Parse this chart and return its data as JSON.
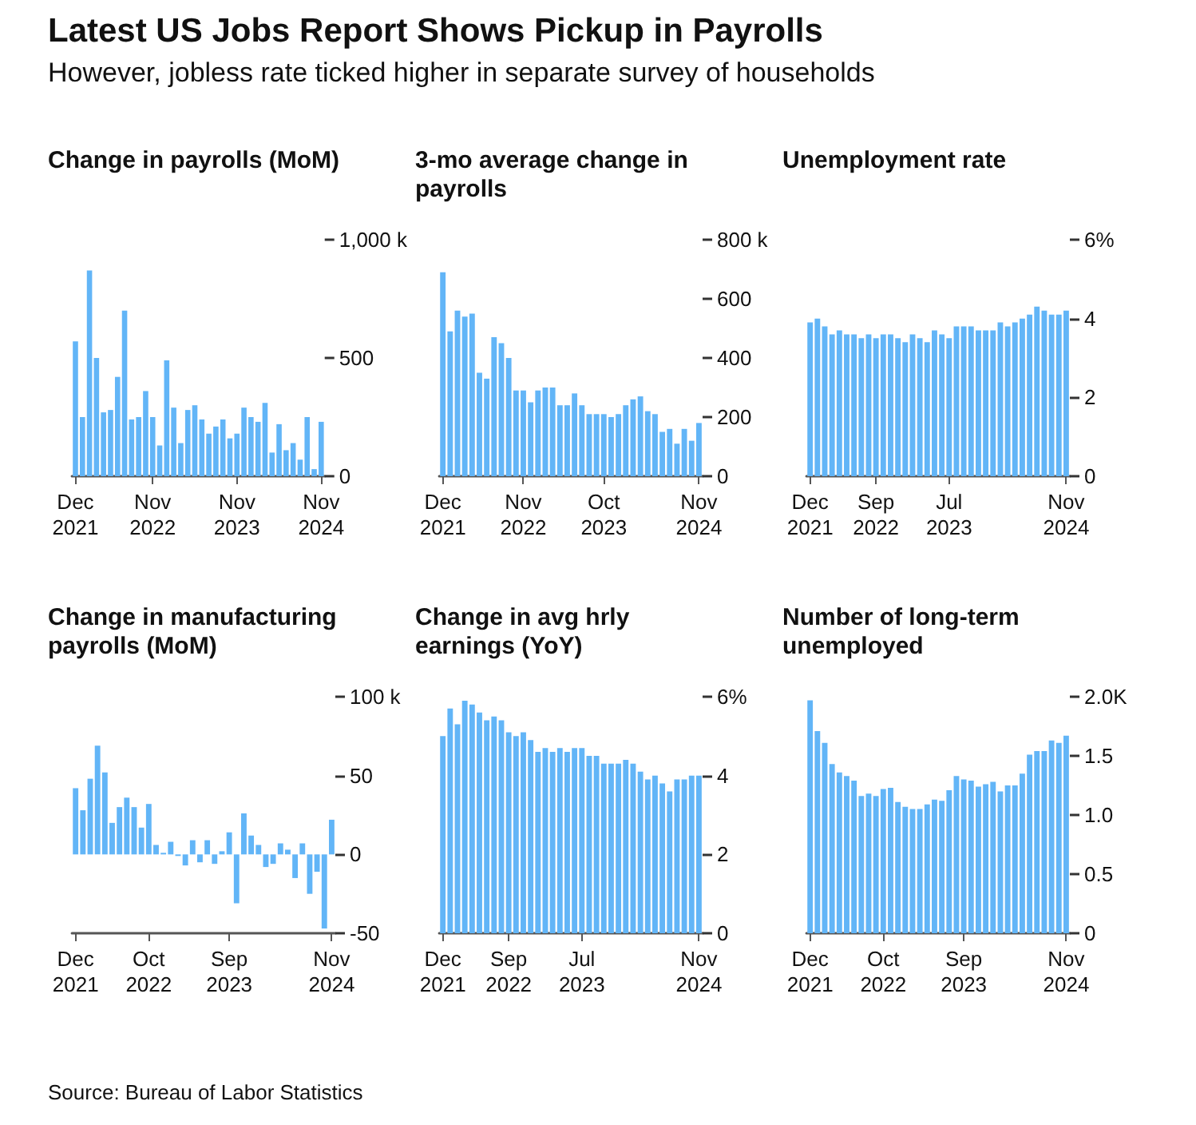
{
  "chart_data": [
    {
      "type": "other",
      "title": "Latest US Jobs Report Shows Pickup in Payrolls",
      "subtitle": "However, jobless rate ticked higher in separate survey of households",
      "annotations": [
        "Source: Bureau of Labor Statistics"
      ]
    },
    {
      "type": "bar",
      "title": "Change in payrolls (MoM)",
      "grid": false,
      "categories": [
        "Dec 2021",
        null,
        null,
        null,
        null,
        null,
        null,
        null,
        null,
        null,
        null,
        "Nov 2022",
        null,
        null,
        null,
        null,
        null,
        null,
        null,
        null,
        null,
        null,
        null,
        "Nov 2023",
        null,
        null,
        null,
        null,
        null,
        null,
        null,
        null,
        null,
        null,
        null,
        "Nov 2024"
      ],
      "series": [
        {
          "color": "#62b5f7",
          "values": [
            570,
            250,
            870,
            500,
            270,
            280,
            420,
            700,
            240,
            250,
            360,
            250,
            130,
            490,
            290,
            140,
            280,
            300,
            240,
            180,
            210,
            240,
            160,
            180,
            290,
            250,
            230,
            310,
            100,
            220,
            110,
            140,
            70,
            250,
            30,
            230
          ]
        }
      ],
      "ylim": [
        0,
        1000
      ],
      "yticks": [
        0,
        500,
        {
          "value": 1000,
          "label": "1,000 k"
        }
      ]
    },
    {
      "type": "bar",
      "title": "3-mo average change in payrolls",
      "grid": false,
      "categories": [
        "Dec 2021",
        null,
        null,
        null,
        null,
        null,
        null,
        null,
        null,
        null,
        null,
        "Nov 2022",
        null,
        null,
        null,
        null,
        null,
        null,
        null,
        null,
        null,
        null,
        "Oct 2023",
        null,
        null,
        null,
        null,
        null,
        null,
        null,
        null,
        null,
        null,
        null,
        null,
        "Nov 2024"
      ],
      "series": [
        {
          "color": "#62b5f7",
          "values": [
            690,
            490,
            560,
            540,
            550,
            350,
            330,
            470,
            450,
            400,
            290,
            290,
            250,
            290,
            300,
            300,
            240,
            240,
            280,
            240,
            210,
            210,
            210,
            200,
            210,
            240,
            260,
            270,
            220,
            210,
            150,
            160,
            110,
            160,
            120,
            180
          ]
        }
      ],
      "ylim": [
        0,
        800
      ],
      "yticks": [
        0,
        200,
        400,
        600,
        {
          "value": 800,
          "label": "800 k"
        }
      ]
    },
    {
      "type": "bar",
      "title": "Unemployment rate",
      "grid": false,
      "categories": [
        "Dec 2021",
        null,
        null,
        null,
        null,
        null,
        null,
        null,
        null,
        "Sep 2022",
        null,
        null,
        null,
        null,
        null,
        null,
        null,
        null,
        null,
        "Jul 2023",
        null,
        null,
        null,
        null,
        null,
        null,
        null,
        null,
        null,
        null,
        null,
        null,
        null,
        null,
        null,
        "Nov 2024"
      ],
      "series": [
        {
          "color": "#62b5f7",
          "values": [
            3.9,
            4.0,
            3.8,
            3.6,
            3.7,
            3.6,
            3.6,
            3.5,
            3.6,
            3.5,
            3.6,
            3.6,
            3.5,
            3.4,
            3.6,
            3.5,
            3.4,
            3.7,
            3.6,
            3.5,
            3.8,
            3.8,
            3.8,
            3.7,
            3.7,
            3.7,
            3.9,
            3.8,
            3.9,
            4.0,
            4.1,
            4.3,
            4.2,
            4.1,
            4.1,
            4.2
          ]
        }
      ],
      "ylim": [
        0,
        6
      ],
      "yticks": [
        0,
        2,
        4,
        {
          "value": 6,
          "label": "6%"
        }
      ]
    },
    {
      "type": "bar",
      "title": "Change in manufacturing payrolls (MoM)",
      "grid": false,
      "categories": [
        "Dec 2021",
        null,
        null,
        null,
        null,
        null,
        null,
        null,
        null,
        null,
        "Oct 2022",
        null,
        null,
        null,
        null,
        null,
        null,
        null,
        null,
        null,
        null,
        "Sep 2023",
        null,
        null,
        null,
        null,
        null,
        null,
        null,
        null,
        null,
        null,
        null,
        null,
        null,
        "Nov 2024"
      ],
      "series": [
        {
          "color": "#62b5f7",
          "values": [
            42,
            28,
            48,
            69,
            52,
            20,
            30,
            36,
            30,
            17,
            32,
            6,
            1,
            8,
            -1,
            -7,
            9,
            -5,
            9,
            -6,
            2,
            14,
            -31,
            26,
            12,
            6,
            -8,
            -6,
            7,
            3,
            -15,
            7,
            -25,
            -11,
            -47,
            22
          ]
        }
      ],
      "ylim": [
        -50,
        100
      ],
      "yticks": [
        -50,
        0,
        50,
        {
          "value": 100,
          "label": "100 k"
        }
      ]
    },
    {
      "type": "bar",
      "title": "Change in avg hrly earnings (YoY)",
      "grid": false,
      "categories": [
        "Dec 2021",
        null,
        null,
        null,
        null,
        null,
        null,
        null,
        null,
        "Sep 2022",
        null,
        null,
        null,
        null,
        null,
        null,
        null,
        null,
        null,
        "Jul 2023",
        null,
        null,
        null,
        null,
        null,
        null,
        null,
        null,
        null,
        null,
        null,
        null,
        null,
        null,
        null,
        "Nov 2024"
      ],
      "series": [
        {
          "color": "#62b5f7",
          "values": [
            5.0,
            5.7,
            5.3,
            5.9,
            5.8,
            5.6,
            5.4,
            5.5,
            5.4,
            5.1,
            5.0,
            5.1,
            4.9,
            4.6,
            4.7,
            4.6,
            4.7,
            4.6,
            4.7,
            4.7,
            4.5,
            4.5,
            4.3,
            4.3,
            4.3,
            4.4,
            4.3,
            4.1,
            3.9,
            4.0,
            3.8,
            3.6,
            3.9,
            3.9,
            4.0,
            4.0
          ]
        }
      ],
      "ylim": [
        0,
        6
      ],
      "yticks": [
        0,
        2,
        4,
        {
          "value": 6,
          "label": "6%"
        }
      ]
    },
    {
      "type": "bar",
      "title": "Number of long-term unemployed",
      "grid": false,
      "categories": [
        "Dec 2021",
        null,
        null,
        null,
        null,
        null,
        null,
        null,
        null,
        null,
        "Oct 2022",
        null,
        null,
        null,
        null,
        null,
        null,
        null,
        null,
        null,
        null,
        "Sep 2023",
        null,
        null,
        null,
        null,
        null,
        null,
        null,
        null,
        null,
        null,
        null,
        null,
        null,
        "Nov 2024"
      ],
      "series": [
        {
          "color": "#62b5f7",
          "values": [
            1.97,
            1.71,
            1.61,
            1.43,
            1.36,
            1.33,
            1.29,
            1.16,
            1.18,
            1.16,
            1.22,
            1.23,
            1.11,
            1.07,
            1.05,
            1.05,
            1.09,
            1.13,
            1.12,
            1.21,
            1.33,
            1.3,
            1.29,
            1.24,
            1.26,
            1.28,
            1.2,
            1.25,
            1.25,
            1.35,
            1.51,
            1.54,
            1.54,
            1.63,
            1.61,
            1.67
          ]
        }
      ],
      "ylim": [
        0,
        2
      ],
      "yticks": [
        0,
        0.5,
        {
          "value": 1,
          "label": "1.0"
        },
        1.5,
        {
          "value": 2,
          "label": "2.0K"
        }
      ]
    }
  ]
}
